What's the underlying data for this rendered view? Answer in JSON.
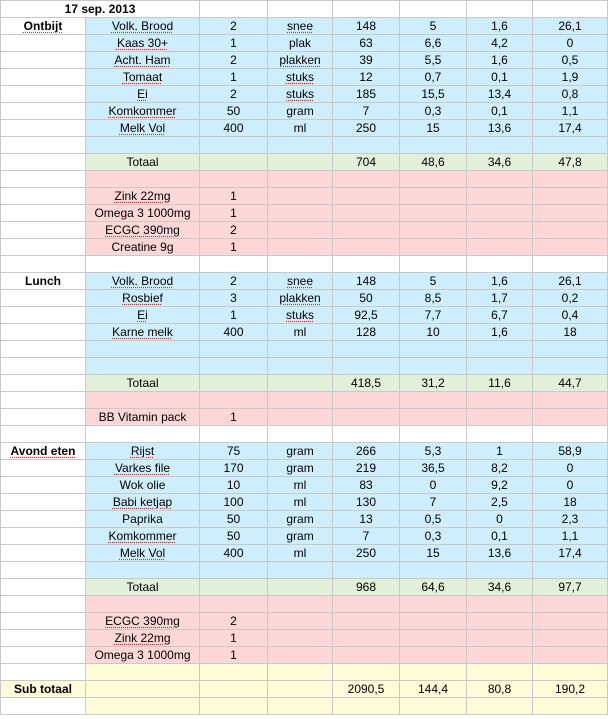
{
  "date": "17 sep. 2013",
  "rows": [
    {
      "style": "white",
      "label": "",
      "cells": [
        "",
        "",
        "",
        "",
        "",
        "",
        "",
        ""
      ]
    },
    {
      "style": "blue",
      "label": "Ontbijt",
      "cells": [
        "Volk. Brood",
        "2",
        "snee",
        "148",
        "5",
        "1,6",
        "26,1"
      ]
    },
    {
      "style": "blue",
      "label": "",
      "cells": [
        "Kaas 30+",
        "1",
        "plak",
        "63",
        "6,6",
        "4,2",
        "0"
      ]
    },
    {
      "style": "blue",
      "label": "",
      "cells": [
        "Acht. Ham",
        "2",
        "plakken",
        "39",
        "5,5",
        "1,6",
        "0,5"
      ]
    },
    {
      "style": "blue",
      "label": "",
      "cells": [
        "Tomaat",
        "1",
        "stuks",
        "12",
        "0,7",
        "0,1",
        "1,9"
      ]
    },
    {
      "style": "blue",
      "label": "",
      "cells": [
        "Ei",
        "2",
        "stuks",
        "185",
        "15,5",
        "13,4",
        "0,8"
      ]
    },
    {
      "style": "blue",
      "label": "",
      "cells": [
        "Komkommer",
        "50",
        "gram",
        "7",
        "0,3",
        "0,1",
        "1,1"
      ]
    },
    {
      "style": "blue",
      "label": "",
      "cells": [
        "Melk Vol",
        "400",
        "ml",
        "250",
        "15",
        "13,6",
        "17,4"
      ]
    },
    {
      "style": "blue",
      "label": "",
      "cells": [
        "",
        "",
        "",
        "",
        "",
        "",
        ""
      ]
    },
    {
      "style": "green",
      "label": "",
      "cells": [
        "Totaal",
        "",
        "",
        "704",
        "48,6",
        "34,6",
        "47,8"
      ]
    },
    {
      "style": "pink",
      "label": "",
      "cells": [
        "",
        "",
        "",
        "",
        "",
        "",
        ""
      ]
    },
    {
      "style": "pink",
      "label": "",
      "cells": [
        "Zink 22mg",
        "1",
        "",
        "",
        "",
        "",
        ""
      ]
    },
    {
      "style": "pink",
      "label": "",
      "cells": [
        "Omega 3  1000mg",
        "1",
        "",
        "",
        "",
        "",
        ""
      ]
    },
    {
      "style": "pink",
      "label": "",
      "cells": [
        "ECGC 390mg",
        "2",
        "",
        "",
        "",
        "",
        ""
      ]
    },
    {
      "style": "pink",
      "label": "",
      "cells": [
        "Creatine 9g",
        "1",
        "",
        "",
        "",
        "",
        ""
      ]
    },
    {
      "style": "white",
      "label": "",
      "cells": [
        "",
        "",
        "",
        "",
        "",
        "",
        ""
      ]
    },
    {
      "style": "blue",
      "label": "Lunch",
      "cells": [
        "Volk. Brood",
        "2",
        "snee",
        "148",
        "5",
        "1,6",
        "26,1"
      ]
    },
    {
      "style": "blue",
      "label": "",
      "cells": [
        "Rosbief",
        "3",
        "plakken",
        "50",
        "8,5",
        "1,7",
        "0,2"
      ]
    },
    {
      "style": "blue",
      "label": "",
      "cells": [
        "Ei",
        "1",
        "stuks",
        "92,5",
        "7,7",
        "6,7",
        "0,4"
      ]
    },
    {
      "style": "blue",
      "label": "",
      "cells": [
        "Karne melk",
        "400",
        "ml",
        "128",
        "10",
        "1,6",
        "18"
      ]
    },
    {
      "style": "blue",
      "label": "",
      "cells": [
        "",
        "",
        "",
        "",
        "",
        "",
        ""
      ]
    },
    {
      "style": "blue",
      "label": "",
      "cells": [
        "",
        "",
        "",
        "",
        "",
        "",
        ""
      ]
    },
    {
      "style": "green",
      "label": "",
      "cells": [
        "Totaal",
        "",
        "",
        "418,5",
        "31,2",
        "11,6",
        "44,7"
      ]
    },
    {
      "style": "pink",
      "label": "",
      "cells": [
        "",
        "",
        "",
        "",
        "",
        "",
        ""
      ]
    },
    {
      "style": "pink",
      "label": "",
      "cells": [
        "BB Vitamin pack",
        "1",
        "",
        "",
        "",
        "",
        ""
      ]
    },
    {
      "style": "white",
      "label": "",
      "cells": [
        "",
        "",
        "",
        "",
        "",
        "",
        ""
      ]
    },
    {
      "style": "blue",
      "label": "Avond eten",
      "cells": [
        "Rijst",
        "75",
        "gram",
        "266",
        "5,3",
        "1",
        "58,9"
      ]
    },
    {
      "style": "blue",
      "label": "",
      "cells": [
        "Varkes file",
        "170",
        "gram",
        "219",
        "36,5",
        "8,2",
        "0"
      ]
    },
    {
      "style": "blue",
      "label": "",
      "cells": [
        "Wok olie",
        "10",
        "ml",
        "83",
        "0",
        "9,2",
        "0"
      ]
    },
    {
      "style": "blue",
      "label": "",
      "cells": [
        "Babi ketjap",
        "100",
        "ml",
        "130",
        "7",
        "2,5",
        "18"
      ]
    },
    {
      "style": "blue",
      "label": "",
      "cells": [
        "Paprika",
        "50",
        "gram",
        "13",
        "0,5",
        "0",
        "2,3"
      ]
    },
    {
      "style": "blue",
      "label": "",
      "cells": [
        "Komkommer",
        "50",
        "gram",
        "7",
        "0,3",
        "0,1",
        "1,1"
      ]
    },
    {
      "style": "blue",
      "label": "",
      "cells": [
        "Melk Vol",
        "400",
        "ml",
        "250",
        "15",
        "13,6",
        "17,4"
      ]
    },
    {
      "style": "blue",
      "label": "",
      "cells": [
        "",
        "",
        "",
        "",
        "",
        "",
        ""
      ]
    },
    {
      "style": "green",
      "label": "",
      "cells": [
        "Totaal",
        "",
        "",
        "968",
        "64,6",
        "34,6",
        "97,7"
      ]
    },
    {
      "style": "pink",
      "label": "",
      "cells": [
        "",
        "",
        "",
        "",
        "",
        "",
        ""
      ]
    },
    {
      "style": "pink",
      "label": "",
      "cells": [
        "ECGC 390mg",
        "2",
        "",
        "",
        "",
        "",
        ""
      ]
    },
    {
      "style": "pink",
      "label": "",
      "cells": [
        "Zink 22mg",
        "1",
        "",
        "",
        "",
        "",
        ""
      ]
    },
    {
      "style": "pink",
      "label": "",
      "cells": [
        "Omega 3  1000mg",
        "1",
        "",
        "",
        "",
        "",
        ""
      ]
    },
    {
      "style": "yellow",
      "label": "",
      "cells": [
        "",
        "",
        "",
        "",
        "",
        "",
        ""
      ]
    },
    {
      "style": "yellow",
      "label": "Sub totaal",
      "cells": [
        "",
        "",
        "",
        "2090,5",
        "144,4",
        "80,8",
        "190,2"
      ]
    },
    {
      "style": "yellow",
      "label": "",
      "cells": [
        "",
        "",
        "",
        "",
        "",
        "",
        ""
      ]
    }
  ]
}
